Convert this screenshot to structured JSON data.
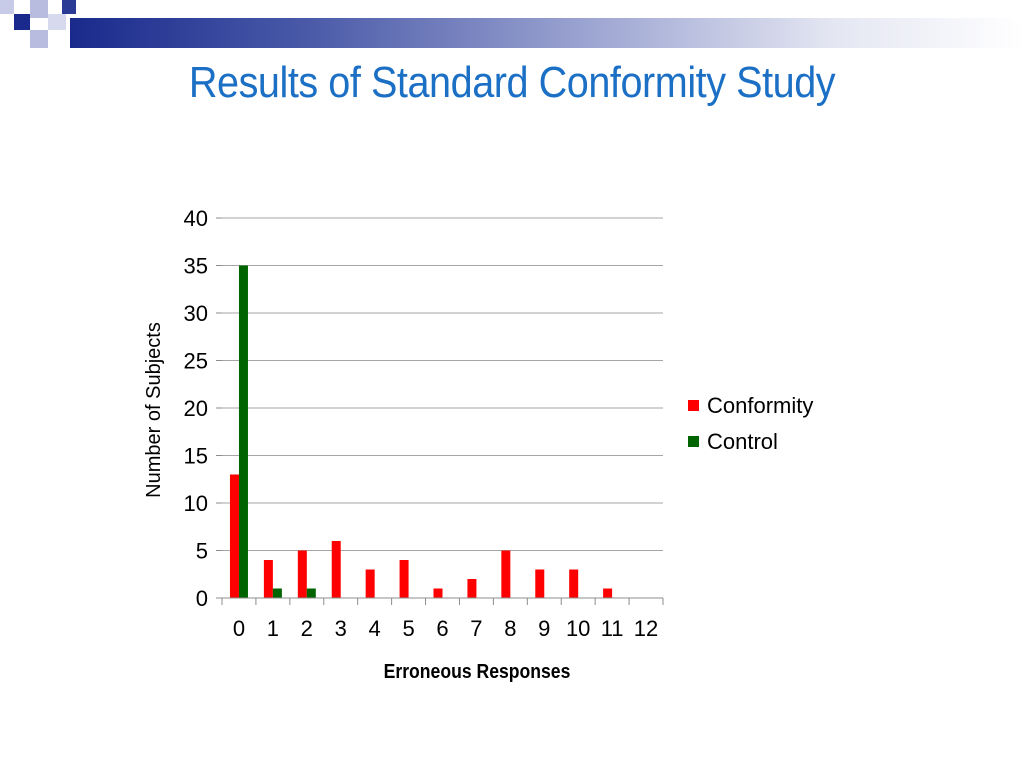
{
  "slide": {
    "title": "Results of Standard Conformity Study"
  },
  "colors": {
    "title": "#1b6fc4",
    "conformity": "#ff0000",
    "control": "#006400",
    "grid": "#a6a6a6",
    "header_dark": "#1a2a8c",
    "header_light": "#b8bde0"
  },
  "chart_data": {
    "type": "bar",
    "title": "",
    "xlabel": "Erroneous Responses",
    "ylabel": "Number of  Subjects",
    "categories": [
      "0",
      "1",
      "2",
      "3",
      "4",
      "5",
      "6",
      "7",
      "8",
      "9",
      "10",
      "11",
      "12"
    ],
    "series": [
      {
        "name": "Conformity",
        "color": "#ff0000",
        "values": [
          13,
          4,
          5,
          6,
          3,
          4,
          1,
          2,
          5,
          3,
          3,
          1,
          0
        ]
      },
      {
        "name": "Control",
        "color": "#006400",
        "values": [
          35,
          1,
          1,
          0,
          0,
          0,
          0,
          0,
          0,
          0,
          0,
          0,
          0
        ]
      }
    ],
    "yticks": [
      "0",
      "5",
      "10",
      "15",
      "20",
      "25",
      "30",
      "35",
      "40"
    ],
    "ylim": [
      0,
      40
    ],
    "grid": true,
    "legend_position": "right"
  }
}
